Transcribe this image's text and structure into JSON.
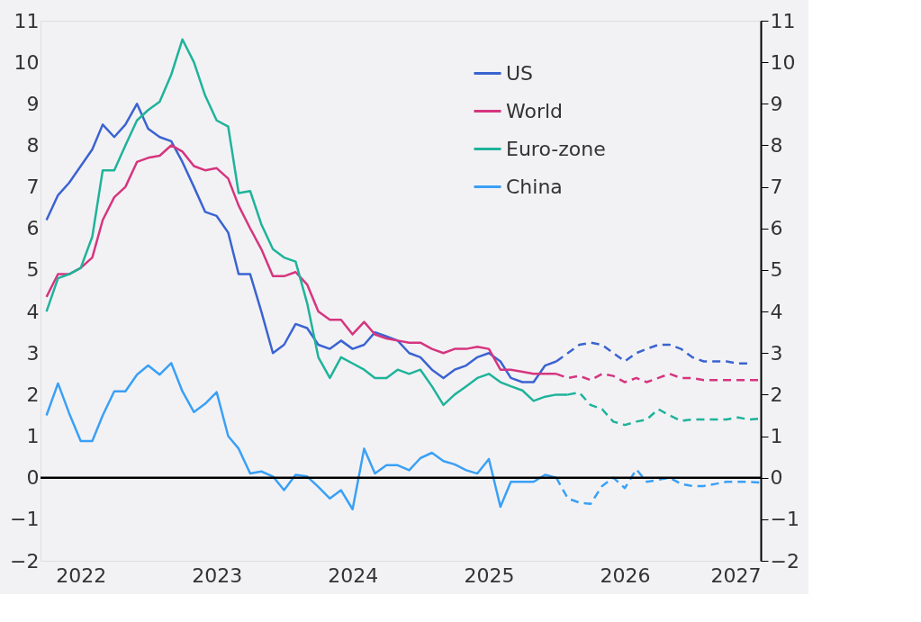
{
  "chart_data": {
    "type": "line",
    "x": [
      "2021-10",
      "2021-11",
      "2021-12",
      "2022-01",
      "2022-02",
      "2022-03",
      "2022-04",
      "2022-05",
      "2022-06",
      "2022-07",
      "2022-08",
      "2022-09",
      "2022-10",
      "2022-11",
      "2022-12",
      "2023-01",
      "2023-02",
      "2023-03",
      "2023-04",
      "2023-05",
      "2023-06",
      "2023-07",
      "2023-08",
      "2023-09",
      "2023-10",
      "2023-11",
      "2023-12",
      "2024-01",
      "2024-02",
      "2024-03",
      "2024-04",
      "2024-05",
      "2024-06",
      "2024-07",
      "2024-08",
      "2024-09",
      "2024-10",
      "2024-11",
      "2024-12",
      "2025-01",
      "2025-02",
      "2025-03",
      "2025-04",
      "2025-05",
      "2025-06",
      "2025-07",
      "2025-08",
      "2025-09",
      "2025-10",
      "2025-11",
      "2025-12",
      "2026-01",
      "2026-02",
      "2026-03",
      "2026-04",
      "2026-05",
      "2026-06",
      "2026-07",
      "2026-08",
      "2026-09",
      "2026-10",
      "2026-11",
      "2026-12",
      "2027-01"
    ],
    "series": [
      {
        "name": "US",
        "color": "#3b63d1",
        "values": [
          6.2,
          6.8,
          7.1,
          7.5,
          7.9,
          8.5,
          8.2,
          8.5,
          9.0,
          8.4,
          8.2,
          8.1,
          7.6,
          7.0,
          6.4,
          6.3,
          5.9,
          4.9,
          4.9,
          4.0,
          3.0,
          3.2,
          3.7,
          3.6,
          3.2,
          3.1,
          3.3,
          3.1,
          3.2,
          3.5,
          3.4,
          3.3,
          3.0,
          2.9,
          2.6,
          2.4,
          2.6,
          2.7,
          2.9,
          3.0,
          2.8,
          2.4,
          2.3,
          2.3,
          2.7,
          2.8,
          null,
          null,
          null,
          null,
          null,
          null,
          null,
          null,
          null,
          null,
          null,
          null,
          null,
          null,
          null,
          null,
          null,
          null
        ]
      },
      {
        "name": "World",
        "color": "#d6357f",
        "values": [
          4.35,
          4.9,
          4.9,
          5.05,
          5.3,
          6.2,
          6.75,
          7.0,
          7.6,
          7.7,
          7.75,
          8.0,
          7.85,
          7.5,
          7.4,
          7.45,
          7.2,
          6.55,
          6.0,
          5.5,
          4.85,
          4.85,
          4.95,
          4.65,
          4.0,
          3.8,
          3.8,
          3.45,
          3.75,
          3.45,
          3.35,
          3.3,
          3.25,
          3.25,
          3.1,
          3.0,
          3.1,
          3.1,
          3.15,
          3.1,
          2.6,
          2.6,
          2.55,
          2.5,
          2.5,
          2.5,
          null,
          null,
          null,
          null,
          null,
          null,
          null,
          null,
          null,
          null,
          null,
          null,
          null,
          null,
          null,
          null,
          null,
          null
        ]
      },
      {
        "name": "Euro-zone",
        "color": "#1fb39a",
        "values": [
          4.0,
          4.8,
          4.9,
          5.05,
          5.8,
          7.4,
          7.4,
          8.0,
          8.6,
          8.85,
          9.05,
          9.7,
          10.55,
          10.0,
          9.2,
          8.6,
          8.45,
          6.85,
          6.9,
          6.1,
          5.5,
          5.3,
          5.2,
          4.2,
          2.9,
          2.4,
          2.9,
          2.75,
          2.6,
          2.4,
          2.4,
          2.6,
          2.5,
          2.6,
          2.2,
          1.75,
          2.0,
          2.2,
          2.4,
          2.5,
          2.3,
          2.2,
          2.1,
          1.85,
          1.95,
          2.0,
          2.0,
          null,
          null,
          null,
          null,
          null,
          null,
          null,
          null,
          null,
          null,
          null,
          null,
          null,
          null,
          null,
          null,
          null
        ]
      },
      {
        "name": "China",
        "color": "#3aa0f5",
        "values": [
          1.5,
          2.27,
          1.55,
          0.88,
          0.88,
          1.5,
          2.08,
          2.08,
          2.48,
          2.7,
          2.48,
          2.76,
          2.08,
          1.58,
          1.78,
          2.06,
          1.0,
          0.7,
          0.1,
          0.15,
          0.03,
          -0.3,
          0.07,
          0.03,
          -0.22,
          -0.5,
          -0.3,
          -0.76,
          0.7,
          0.1,
          0.3,
          0.3,
          0.18,
          0.47,
          0.6,
          0.4,
          0.32,
          0.18,
          0.1,
          0.45,
          -0.7,
          -0.1,
          -0.1,
          -0.1,
          0.07,
          0.0,
          null,
          null,
          null,
          null,
          null,
          null,
          null,
          null,
          null,
          null,
          null,
          null,
          null,
          null,
          null,
          null,
          null,
          null
        ]
      },
      {
        "color": "#3b63d1",
        "line_style": "dashed",
        "values": [
          null,
          null,
          null,
          null,
          null,
          null,
          null,
          null,
          null,
          null,
          null,
          null,
          null,
          null,
          null,
          null,
          null,
          null,
          null,
          null,
          null,
          null,
          null,
          null,
          null,
          null,
          null,
          null,
          null,
          null,
          null,
          null,
          null,
          null,
          null,
          null,
          null,
          null,
          null,
          null,
          null,
          null,
          null,
          null,
          null,
          2.8,
          3.0,
          3.2,
          3.25,
          3.2,
          3.0,
          2.8,
          3.0,
          3.1,
          3.2,
          3.2,
          3.1,
          2.9,
          2.8,
          2.8,
          2.8,
          2.75,
          2.75,
          null
        ]
      },
      {
        "color": "#d6357f",
        "line_style": "dashed",
        "values": [
          null,
          null,
          null,
          null,
          null,
          null,
          null,
          null,
          null,
          null,
          null,
          null,
          null,
          null,
          null,
          null,
          null,
          null,
          null,
          null,
          null,
          null,
          null,
          null,
          null,
          null,
          null,
          null,
          null,
          null,
          null,
          null,
          null,
          null,
          null,
          null,
          null,
          null,
          null,
          null,
          null,
          null,
          null,
          null,
          null,
          2.5,
          2.4,
          2.45,
          2.35,
          2.5,
          2.45,
          2.3,
          2.4,
          2.3,
          2.4,
          2.5,
          2.4,
          2.4,
          2.35,
          2.35,
          2.35,
          2.35,
          2.35,
          2.35
        ]
      },
      {
        "color": "#1fb39a",
        "line_style": "dashed",
        "values": [
          null,
          null,
          null,
          null,
          null,
          null,
          null,
          null,
          null,
          null,
          null,
          null,
          null,
          null,
          null,
          null,
          null,
          null,
          null,
          null,
          null,
          null,
          null,
          null,
          null,
          null,
          null,
          null,
          null,
          null,
          null,
          null,
          null,
          null,
          null,
          null,
          null,
          null,
          null,
          null,
          null,
          null,
          null,
          null,
          null,
          null,
          2.0,
          2.05,
          1.75,
          1.65,
          1.35,
          1.27,
          1.35,
          1.4,
          1.65,
          1.5,
          1.37,
          1.4,
          1.4,
          1.4,
          1.4,
          1.45,
          1.4,
          1.42
        ]
      },
      {
        "color": "#3aa0f5",
        "line_style": "dashed",
        "values": [
          null,
          null,
          null,
          null,
          null,
          null,
          null,
          null,
          null,
          null,
          null,
          null,
          null,
          null,
          null,
          null,
          null,
          null,
          null,
          null,
          null,
          null,
          null,
          null,
          null,
          null,
          null,
          null,
          null,
          null,
          null,
          null,
          null,
          null,
          null,
          null,
          null,
          null,
          null,
          null,
          null,
          null,
          null,
          null,
          null,
          0.0,
          -0.5,
          -0.6,
          -0.63,
          -0.2,
          0.0,
          -0.25,
          0.2,
          -0.1,
          -0.05,
          0.0,
          -0.15,
          -0.2,
          -0.2,
          -0.15,
          -0.1,
          -0.1,
          -0.1,
          -0.12
        ]
      }
    ],
    "xlim": [
      "2021-09-15",
      "2027-01-01"
    ],
    "xticks": [
      "2022",
      "2023",
      "2024",
      "2025",
      "2026",
      "2027"
    ],
    "ylim": [
      -2,
      11
    ],
    "yticks": [
      -2,
      -1,
      0,
      1,
      2,
      3,
      4,
      5,
      6,
      7,
      8,
      9,
      10,
      11
    ],
    "y2lim": [
      -2,
      11
    ],
    "y2ticks": [
      -2,
      -1,
      0,
      1,
      2,
      3,
      4,
      5,
      6,
      7,
      8,
      9,
      10,
      11
    ],
    "ref_lines": [
      {
        "axis": "y",
        "value": 0,
        "color": "#000000"
      }
    ],
    "legend": "top right",
    "grid": false,
    "line_style": "solid"
  }
}
